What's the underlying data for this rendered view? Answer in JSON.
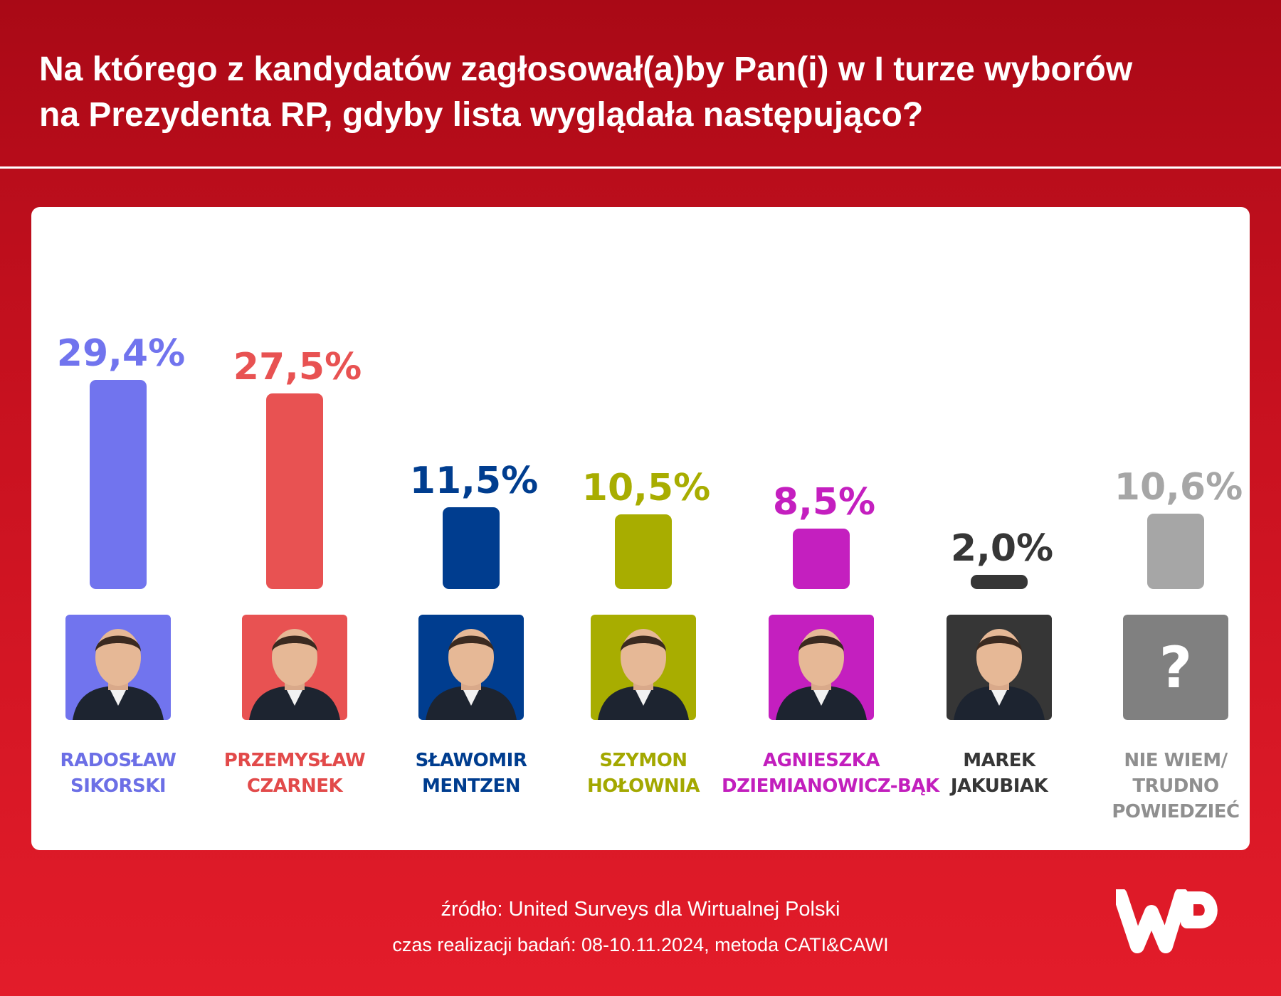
{
  "header": {
    "title_line1": "Na którego z kandydatów zagłosował(a)by Pan(i) w I turze wyborów",
    "title_line2": "na Prezydenta RP, gdyby lista wyglądała następująco?"
  },
  "chart_data": {
    "type": "bar",
    "title": "Na którego z kandydatów zagłosował(a)by Pan(i) w I turze wyborów na Prezydenta RP, gdyby lista wyglądała następująco?",
    "categories": [
      "RADOSŁAW SIKORSKI",
      "PRZEMYSŁAW CZARNEK",
      "SŁAWOMIR MENTZEN",
      "SZYMON HOŁOWNIA",
      "AGNIESZKA DZIEMIANOWICZ-BĄK",
      "MAREK JAKUBIAK",
      "NIE WIEM/ TRUDNO POWIEDZIEĆ"
    ],
    "values": [
      29.4,
      27.5,
      11.5,
      10.5,
      8.5,
      2.0,
      10.6
    ],
    "value_labels": [
      "29,4%",
      "27,5%",
      "11,5%",
      "10,5%",
      "8,5%",
      "2,0%",
      "10,6%"
    ],
    "colors": [
      "#7174ee",
      "#e85252",
      "#003d8f",
      "#a8ad00",
      "#c41fbf",
      "#363636",
      "#a6a6a6"
    ],
    "xlabel": "",
    "ylabel": "",
    "grid": false,
    "legend": "none"
  },
  "candidates": [
    {
      "name_line1": "RADOSŁAW",
      "name_line2": "SIKORSKI",
      "name_line3": "",
      "color": "#7174ee",
      "photo": "portrait",
      "label_color": "#6c6fe6"
    },
    {
      "name_line1": "PRZEMYSŁAW",
      "name_line2": "CZARNEK",
      "name_line3": "",
      "color": "#e85252",
      "photo": "portrait",
      "label_color": "#e24a4a"
    },
    {
      "name_line1": "SŁAWOMIR",
      "name_line2": "MENTZEN",
      "name_line3": "",
      "color": "#003d8f",
      "photo": "portrait",
      "label_color": "#003d8f"
    },
    {
      "name_line1": "SZYMON",
      "name_line2": "HOŁOWNIA",
      "name_line3": "",
      "color": "#a8ad00",
      "photo": "portrait",
      "label_color": "#a3a800"
    },
    {
      "name_line1": "AGNIESZKA",
      "name_line2": "DZIEMIANOWICZ-BĄK",
      "name_line3": "",
      "color": "#c41fbf",
      "photo": "portrait",
      "label_color": "#c21fbd"
    },
    {
      "name_line1": "MAREK",
      "name_line2": "JAKUBIAK",
      "name_line3": "",
      "color": "#363636",
      "photo": "portrait",
      "label_color": "#363636"
    },
    {
      "name_line1": "NIE WIEM/",
      "name_line2": "TRUDNO",
      "name_line3": "POWIEDZIEĆ",
      "color": "#808080",
      "photo": "question-mark-icon",
      "label_color": "#8f8f8f",
      "mark": "?"
    }
  ],
  "footer": {
    "source": "źródło: United Surveys dla Wirtualnej Polski",
    "details": "czas realizacji badań: 08-10.11.2024, metoda CATI&CAWI"
  },
  "logo": {
    "name": "wp-logo",
    "color": "#ffffff"
  }
}
